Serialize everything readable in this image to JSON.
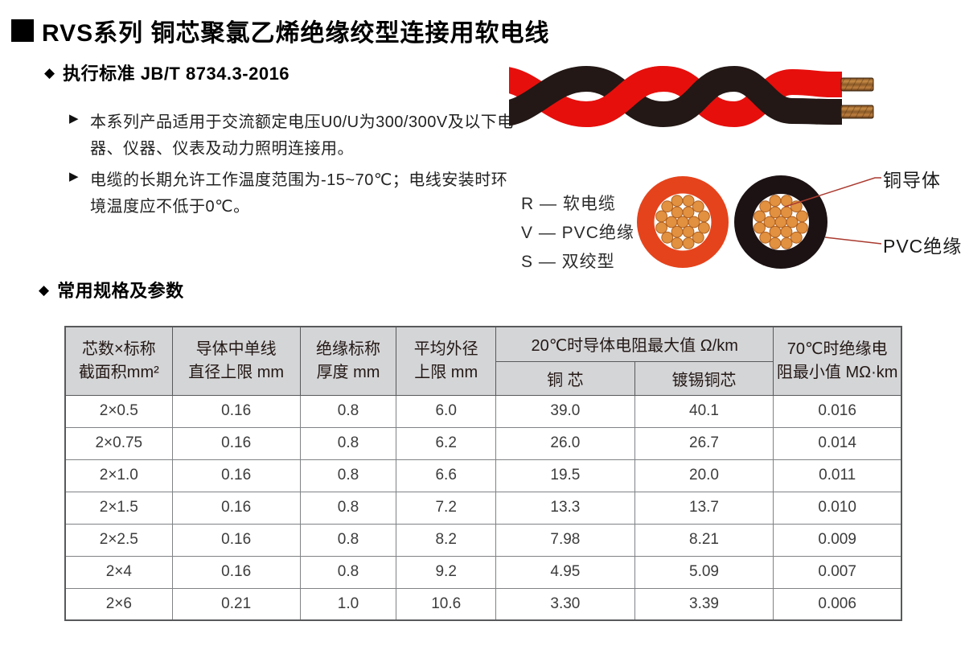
{
  "header": {
    "title": "RVS系列 铜芯聚氯乙烯绝缘绞型连接用软电线",
    "standard_heading": "执行标准 JB/T 8734.3-2016"
  },
  "intro": {
    "bullet1": "本系列产品适用于交流额定电压U0/U为300/300V及以下电器、仪器、仪表及动力照明连接用。",
    "bullet2": "电缆的长期允许工作温度范围为-15~70℃；电线安装时环境温度应不低于0℃。"
  },
  "code_legend": {
    "items": [
      "R — 软电缆",
      "V — PVC绝缘",
      "S — 双绞型"
    ]
  },
  "cross_section": {
    "label_conductor": "铜导体",
    "label_insulation": "PVC绝缘"
  },
  "specs": {
    "section_heading": "常用规格及参数",
    "table": {
      "col_core": [
        "芯数×标称",
        "截面积mm²"
      ],
      "col_wire_dia": [
        "导体中单线",
        "直径上限 mm"
      ],
      "col_ins_thickness": [
        "绝缘标称",
        "厚度 mm"
      ],
      "col_od": [
        "平均外径",
        "上限 mm"
      ],
      "col_res_group": "20℃时导体电阻最大值 Ω/km",
      "col_res_cu": "铜 芯",
      "col_res_tinned": "镀锡铜芯",
      "col_ins_res": [
        "70℃时绝缘电",
        "阻最小值 MΩ·km"
      ],
      "rows": [
        [
          "2×0.5",
          "0.16",
          "0.8",
          "6.0",
          "39.0",
          "40.1",
          "0.016"
        ],
        [
          "2×0.75",
          "0.16",
          "0.8",
          "6.2",
          "26.0",
          "26.7",
          "0.014"
        ],
        [
          "2×1.0",
          "0.16",
          "0.8",
          "6.6",
          "19.5",
          "20.0",
          "0.011"
        ],
        [
          "2×1.5",
          "0.16",
          "0.8",
          "7.2",
          "13.3",
          "13.7",
          "0.010"
        ],
        [
          "2×2.5",
          "0.16",
          "0.8",
          "8.2",
          "7.98",
          "8.21",
          "0.009"
        ],
        [
          "2×4",
          "0.16",
          "0.8",
          "9.2",
          "4.95",
          "5.09",
          "0.007"
        ],
        [
          "2×6",
          "0.21",
          "1.0",
          "10.6",
          "3.30",
          "3.39",
          "0.006"
        ]
      ]
    }
  },
  "colors": {
    "cable_red": "#e60f0c",
    "cable_black": "#231815",
    "section_red": "#e5431c",
    "copper_strand": "#e1913f",
    "copper_strand_edge": "#b06122",
    "leader_line": "#aa3b30",
    "table_header_bg": "#d4d5d7"
  }
}
